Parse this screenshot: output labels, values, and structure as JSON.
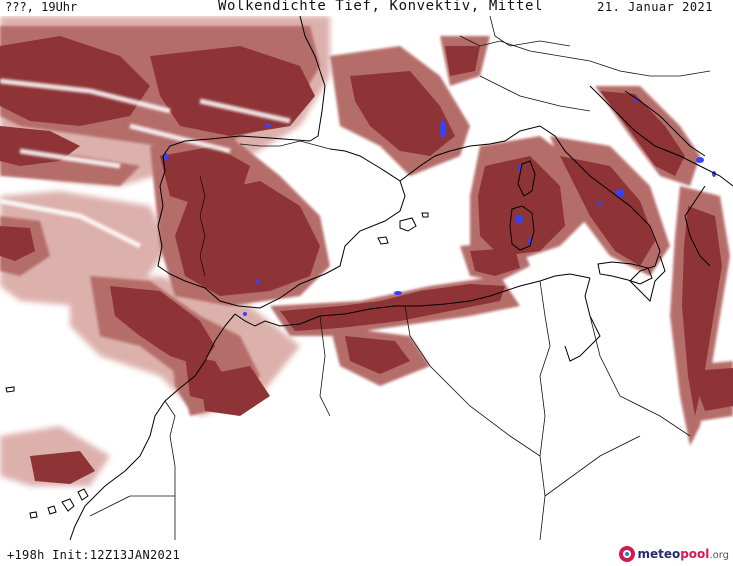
{
  "header": {
    "left": "???, 19Uhr",
    "title": "Wolkendichte  Tief, Konvektiv, Mittel",
    "date": "21. Januar 2021"
  },
  "footer": {
    "run_info": "+198h Init:12Z13JAN2021",
    "brand": {
      "part1": "meteo",
      "part2": "pool",
      "part3": ".org"
    }
  },
  "map": {
    "region": "western-mediterranean",
    "colors": {
      "cloud_dark": "#8e3436",
      "cloud_mid": "#b56d6b",
      "cloud_light": "#d9a8a3",
      "convective": "#3344ff",
      "coastline": "#000000",
      "border": "#111111"
    }
  }
}
